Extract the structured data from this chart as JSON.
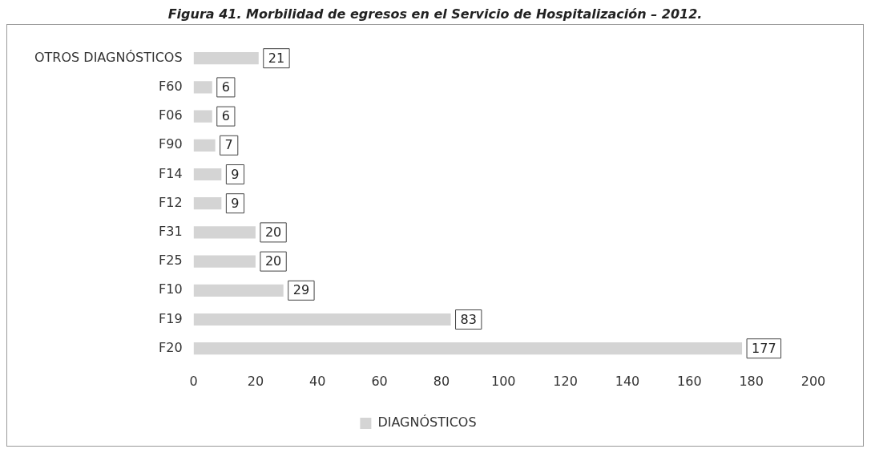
{
  "chart_data": {
    "type": "bar",
    "orientation": "horizontal",
    "title": "Figura 41. Morbilidad de egresos en el Servicio de Hospitalización – 2012.",
    "categories": [
      "OTROS DIAGNÓSTICOS",
      "F60",
      "F06",
      "F90",
      "F14",
      "F12",
      "F31",
      "F25",
      "F10",
      "F19",
      "F20"
    ],
    "series": [
      {
        "name": "DIAGNÓSTICOS",
        "color": "#d4d4d4",
        "values": [
          21,
          6,
          6,
          7,
          9,
          9,
          20,
          20,
          29,
          83,
          177
        ]
      }
    ],
    "xlim": [
      0,
      200
    ],
    "xticks": [
      0,
      20,
      40,
      60,
      80,
      100,
      120,
      140,
      160,
      180,
      200
    ],
    "grid": false,
    "legend": "bottom",
    "data_labels": true
  }
}
